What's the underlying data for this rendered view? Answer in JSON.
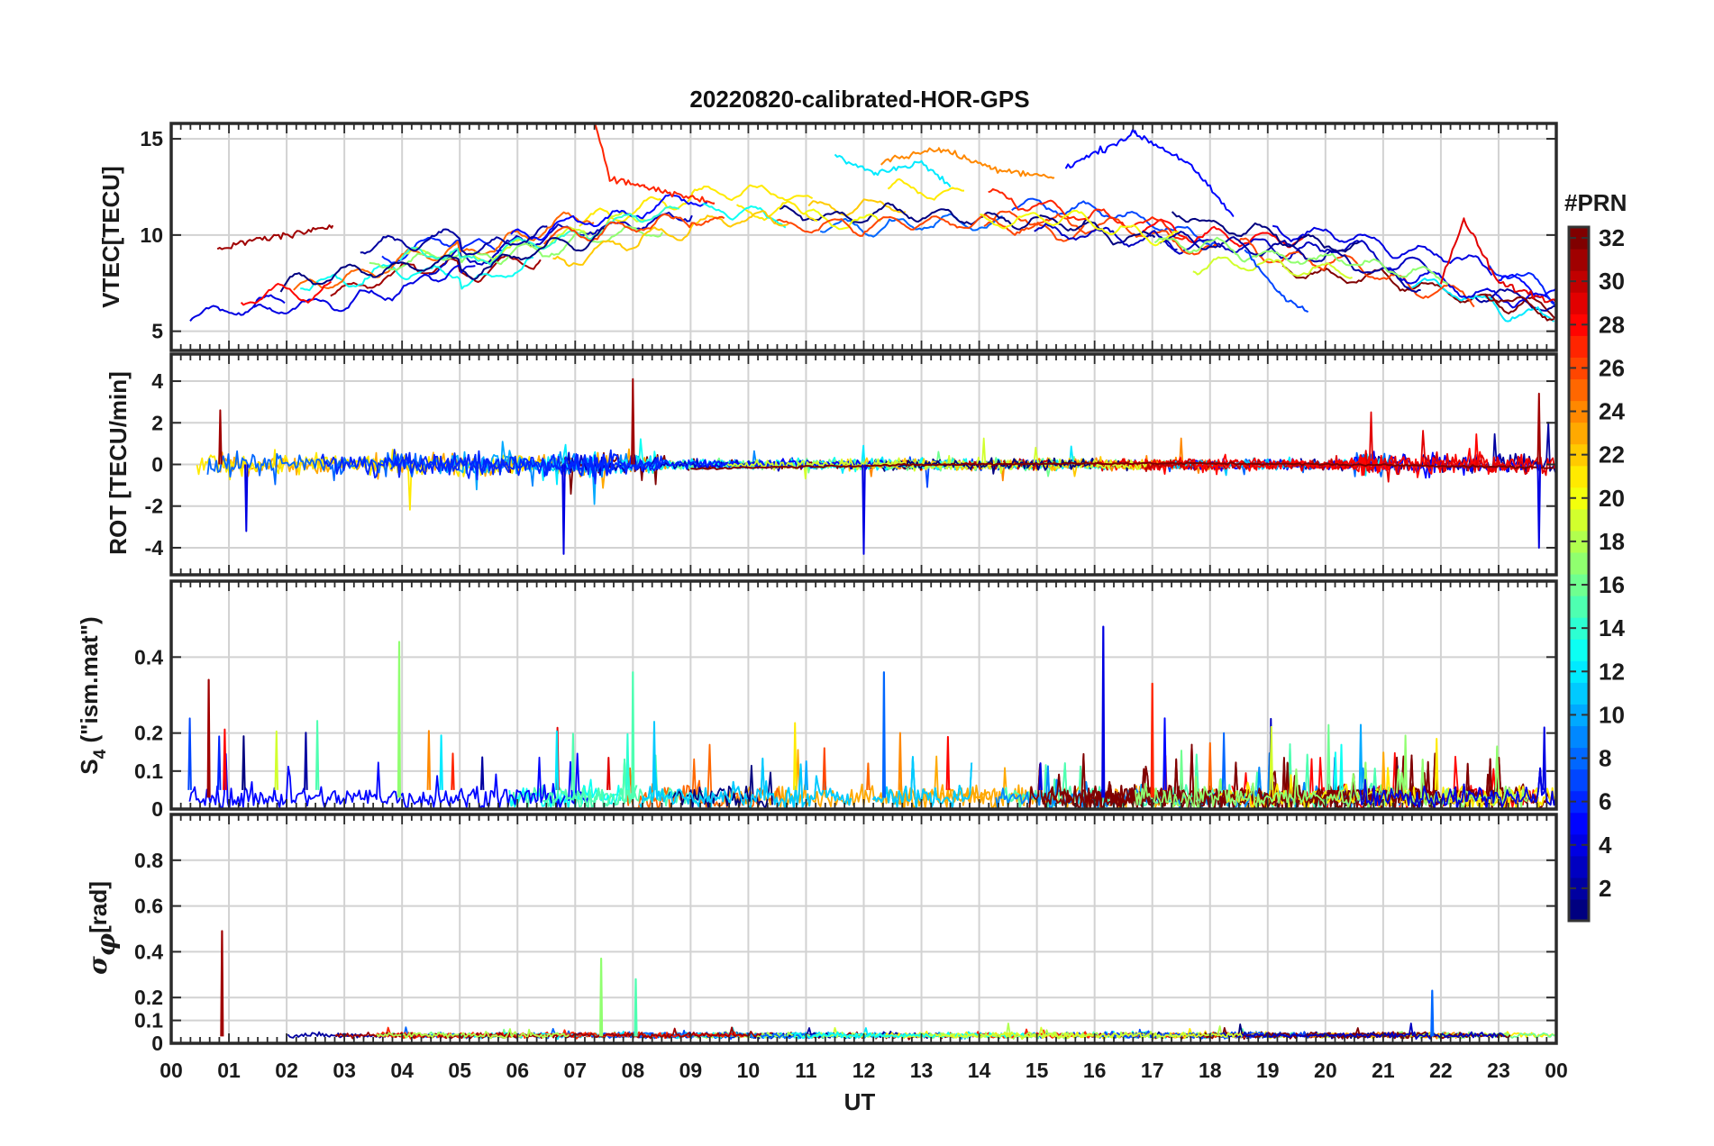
{
  "figure": {
    "title": "20220820-calibrated-HOR-GPS",
    "xlabel": "UT",
    "colorbar": {
      "label": "#PRN",
      "ticks": [
        "2",
        "4",
        "6",
        "8",
        "10",
        "12",
        "14",
        "16",
        "18",
        "20",
        "22",
        "24",
        "26",
        "28",
        "30",
        "32"
      ],
      "range": [
        1,
        32
      ],
      "colormap": "jet"
    }
  },
  "chart_data": [
    {
      "type": "line",
      "panel": "vtec",
      "ylabel": "VTEC[TECU]",
      "xlim": [
        0,
        24
      ],
      "ylim": [
        4,
        15.8
      ],
      "yticks": [
        5,
        10,
        15
      ],
      "xtick_labels": [
        "00",
        "01",
        "02",
        "03",
        "04",
        "05",
        "06",
        "07",
        "08",
        "09",
        "10",
        "11",
        "12",
        "13",
        "14",
        "15",
        "16",
        "17",
        "18",
        "19",
        "20",
        "21",
        "22",
        "23",
        "00"
      ],
      "grid": true,
      "series_note": "one trace per GPS PRN 1-32, colored by PRN",
      "series": [
        {
          "prn": 31,
          "x": [
            0.8,
            1.5,
            2.5,
            2.8
          ],
          "y": [
            9.2,
            9.8,
            10.2,
            10.5
          ]
        },
        {
          "prn": 27,
          "x": [
            7.35,
            7.6,
            8.2,
            9.4
          ],
          "y": [
            15.8,
            13.0,
            12.5,
            11.7
          ]
        },
        {
          "prn": 24,
          "x": [
            12.3,
            13.3,
            14.2,
            15.3
          ],
          "y": [
            13.8,
            14.5,
            13.5,
            13.0
          ]
        },
        {
          "prn": 12,
          "x": [
            11.5,
            12.2,
            13.0,
            13.5
          ],
          "y": [
            14.1,
            13.2,
            13.8,
            12.5
          ]
        },
        {
          "prn": 5,
          "x": [
            15.5,
            16.7,
            17.6,
            18.4
          ],
          "y": [
            13.5,
            15.3,
            13.8,
            11.0
          ]
        },
        {
          "prn": 7,
          "x": [
            18.6,
            19.2,
            19.7
          ],
          "y": [
            9.2,
            7.0,
            6.0
          ]
        },
        {
          "prn": 29,
          "x": [
            22.0,
            22.4,
            23.0,
            24.0
          ],
          "y": [
            7.5,
            10.8,
            7.5,
            6.5
          ]
        }
      ]
    },
    {
      "type": "line",
      "panel": "rot",
      "ylabel": "ROT [TECU/min]",
      "xlim": [
        0,
        24
      ],
      "ylim": [
        -5.3,
        5.3
      ],
      "yticks": [
        -4,
        -2,
        0,
        2,
        4
      ],
      "grid": true,
      "spikes": [
        {
          "x": 0.85,
          "y": 2.6
        },
        {
          "x": 1.3,
          "y": -3.2
        },
        {
          "x": 6.8,
          "y": -4.3
        },
        {
          "x": 8.0,
          "y": 4.1
        },
        {
          "x": 12.0,
          "y": -4.3
        },
        {
          "x": 23.7,
          "y": 3.4
        },
        {
          "x": 23.7,
          "y": -4.0
        }
      ]
    },
    {
      "type": "line",
      "panel": "s4",
      "ylabel": "S4 (\"ism.mat\")",
      "ylabel_main": "S",
      "ylabel_sub": "4",
      "ylabel_rest": " (\"ism.mat\")",
      "xlim": [
        0,
        24
      ],
      "ylim": [
        0,
        0.6
      ],
      "yticks": [
        0,
        0.1,
        0.2,
        0.4
      ],
      "ytick_labels": [
        "0",
        "0.1",
        "0.2",
        "0.4"
      ],
      "grid": true,
      "spikes": [
        {
          "x": 0.65,
          "y": 0.34
        },
        {
          "x": 3.95,
          "y": 0.44
        },
        {
          "x": 8.0,
          "y": 0.36
        },
        {
          "x": 12.35,
          "y": 0.36
        },
        {
          "x": 16.15,
          "y": 0.48
        },
        {
          "x": 17.0,
          "y": 0.33
        }
      ]
    },
    {
      "type": "line",
      "panel": "sigma_phi",
      "ylabel": "σφ[rad]",
      "ylabel_main": "σ",
      "ylabel_sub": "φ",
      "ylabel_rest": "[rad]",
      "xlim": [
        0,
        24
      ],
      "ylim": [
        0,
        1
      ],
      "yticks": [
        0,
        0.1,
        0.2,
        0.4,
        0.6,
        0.8
      ],
      "ytick_labels": [
        "0",
        "0.1",
        "0.2",
        "0.4",
        "0.6",
        "0.8"
      ],
      "grid": true,
      "spikes": [
        {
          "x": 0.88,
          "y": 0.49
        },
        {
          "x": 7.45,
          "y": 0.37
        },
        {
          "x": 8.05,
          "y": 0.28
        },
        {
          "x": 21.85,
          "y": 0.23
        }
      ]
    }
  ]
}
